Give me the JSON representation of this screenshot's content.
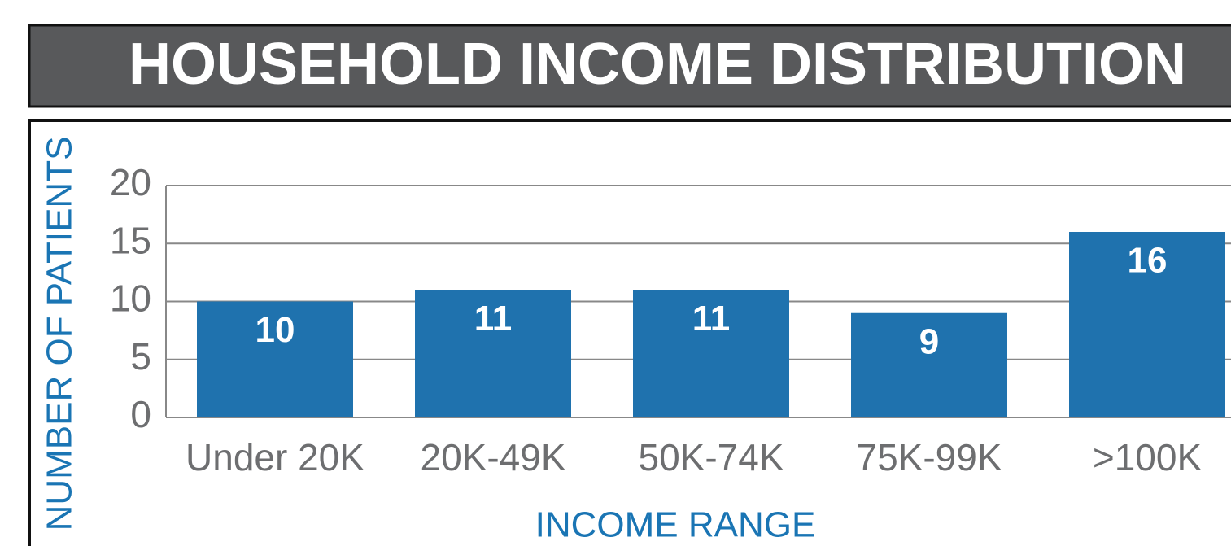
{
  "chart_data": {
    "type": "bar",
    "title": "HOUSEHOLD INCOME DISTRIBUTION",
    "x_label": "INCOME RANGE",
    "y_label": "NUMBER OF PATIENTS",
    "categories": [
      "Under 20K",
      "20K-49K",
      "50K-74K",
      "75K-99K",
      ">100K"
    ],
    "values": [
      10,
      11,
      11,
      9,
      16
    ],
    "color": "#1f72ae",
    "ylim": [
      0,
      20
    ],
    "yticks": [
      0,
      5,
      10,
      15,
      20
    ],
    "grid": true
  }
}
